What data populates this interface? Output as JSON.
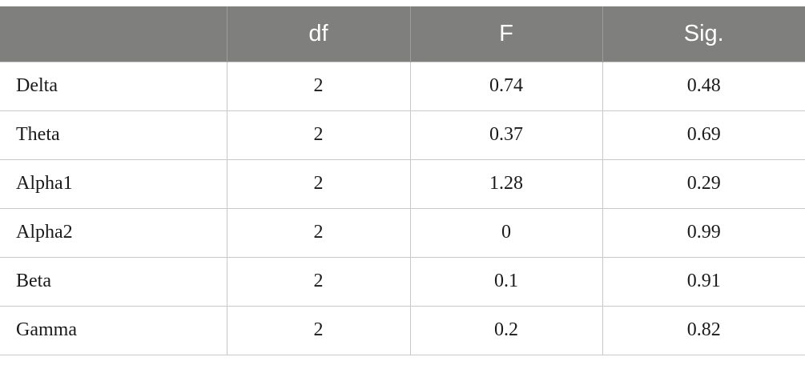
{
  "table": {
    "headers": [
      "",
      "df",
      "F",
      "Sig."
    ],
    "rows": [
      {
        "label": "Delta",
        "df": "2",
        "f": "0.74",
        "sig": "0.48"
      },
      {
        "label": "Theta",
        "df": "2",
        "f": "0.37",
        "sig": "0.69"
      },
      {
        "label": "Alpha1",
        "df": "2",
        "f": "1.28",
        "sig": "0.29"
      },
      {
        "label": "Alpha2",
        "df": "2",
        "f": "0",
        "sig": "0.99"
      },
      {
        "label": "Beta",
        "df": "2",
        "f": "0.1",
        "sig": "0.91"
      },
      {
        "label": "Gamma",
        "df": "2",
        "f": "0.2",
        "sig": "0.82"
      }
    ],
    "colors": {
      "header_bg": "#7f7f7e",
      "header_text": "#ffffff",
      "grid": "#c9c9c9"
    }
  }
}
